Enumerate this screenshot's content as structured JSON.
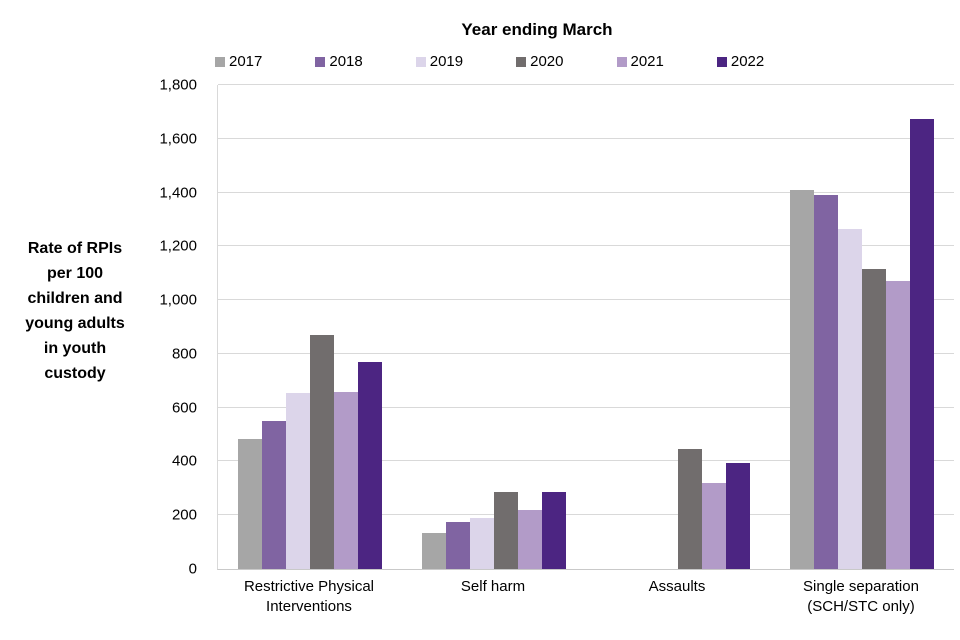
{
  "colors": {
    "grid": "#d9d9d9",
    "axis": "#c9c9c9",
    "text": "#000000"
  },
  "y_axis_title": "Rate of RPIs\nper 100\nchildren and\nyoung adults\nin youth\ncustody",
  "chart_data": {
    "type": "bar",
    "title": "Year ending March",
    "categories": [
      "Restrictive Physical\nInterventions",
      "Self harm",
      "Assaults",
      "Single separation\n(SCH/STC only)"
    ],
    "series": [
      {
        "name": "2017",
        "color": "#a6a6a6",
        "values": [
          485,
          135,
          null,
          1410
        ]
      },
      {
        "name": "2018",
        "color": "#8064a2",
        "values": [
          550,
          175,
          null,
          1390
        ]
      },
      {
        "name": "2019",
        "color": "#dcd5ea",
        "values": [
          655,
          190,
          null,
          1265
        ]
      },
      {
        "name": "2020",
        "color": "#716d6d",
        "values": [
          870,
          285,
          445,
          1115
        ]
      },
      {
        "name": "2021",
        "color": "#b29bc8",
        "values": [
          660,
          220,
          320,
          1070
        ]
      },
      {
        "name": "2022",
        "color": "#4c2582",
        "values": [
          770,
          285,
          395,
          1675
        ]
      }
    ],
    "xlabel": "",
    "ylabel": "Rate of RPIs per 100 children and young adults in youth custody",
    "ylim": [
      0,
      1800
    ],
    "ytick_step": 200,
    "ytick_labels": [
      "0",
      "200",
      "400",
      "600",
      "800",
      "1,000",
      "1,200",
      "1,400",
      "1,600",
      "1,800"
    ],
    "grid": true,
    "legend_position": "top"
  }
}
